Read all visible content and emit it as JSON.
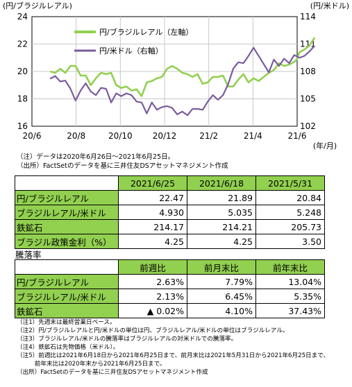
{
  "chart_data": {
    "type": "line",
    "ylabel_left": "(円/ブラジルレアル)",
    "ylabel_right": "(円/米ドル)",
    "xunit": "(年/月)",
    "y_left_ticks": [
      "16",
      "18",
      "20",
      "22",
      "24"
    ],
    "y_right_ticks": [
      "102",
      "105",
      "108",
      "111",
      "114"
    ],
    "ylim_left": [
      16,
      24
    ],
    "ylim_right": [
      102,
      114
    ],
    "x_ticks": [
      "20/6",
      "20/8",
      "20/10",
      "20/12",
      "21/2",
      "21/4",
      "21/6"
    ],
    "grid": true,
    "legend_position": "top-left",
    "series": [
      {
        "name": "円/ブラジルレアル（左軸）",
        "axis": "left",
        "color": "#92d050",
        "points": [
          [
            "2020-06-26",
            20.0
          ],
          [
            "2020-07-03",
            19.9
          ],
          [
            "2020-07-10",
            20.2
          ],
          [
            "2020-07-17",
            19.9
          ],
          [
            "2020-07-24",
            20.4
          ],
          [
            "2020-07-31",
            20.4
          ],
          [
            "2020-08-07",
            19.7
          ],
          [
            "2020-08-14",
            19.7
          ],
          [
            "2020-08-21",
            19.0
          ],
          [
            "2020-08-28",
            19.5
          ],
          [
            "2020-09-04",
            19.9
          ],
          [
            "2020-09-11",
            19.8
          ],
          [
            "2020-09-18",
            19.9
          ],
          [
            "2020-09-25",
            19.0
          ],
          [
            "2020-10-02",
            18.8
          ],
          [
            "2020-10-09",
            18.9
          ],
          [
            "2020-10-16",
            18.6
          ],
          [
            "2020-10-23",
            18.7
          ],
          [
            "2020-10-30",
            18.2
          ],
          [
            "2020-11-06",
            19.2
          ],
          [
            "2020-11-13",
            19.3
          ],
          [
            "2020-11-20",
            19.5
          ],
          [
            "2020-11-27",
            19.6
          ],
          [
            "2020-12-04",
            20.2
          ],
          [
            "2020-12-11",
            20.4
          ],
          [
            "2020-12-18",
            20.2
          ],
          [
            "2020-12-25",
            19.9
          ],
          [
            "2021-01-01",
            19.8
          ],
          [
            "2021-01-08",
            19.6
          ],
          [
            "2021-01-15",
            19.8
          ],
          [
            "2021-01-22",
            19.1
          ],
          [
            "2021-01-29",
            19.2
          ],
          [
            "2021-02-05",
            19.6
          ],
          [
            "2021-02-12",
            19.6
          ],
          [
            "2021-02-19",
            19.7
          ],
          [
            "2021-02-26",
            18.9
          ],
          [
            "2021-03-05",
            18.9
          ],
          [
            "2021-03-12",
            19.4
          ],
          [
            "2021-03-19",
            19.8
          ],
          [
            "2021-03-26",
            19.2
          ],
          [
            "2021-04-02",
            19.5
          ],
          [
            "2021-04-09",
            19.3
          ],
          [
            "2021-04-16",
            19.6
          ],
          [
            "2021-04-23",
            19.9
          ],
          [
            "2021-04-30",
            20.1
          ],
          [
            "2021-05-07",
            20.6
          ],
          [
            "2021-05-14",
            20.4
          ],
          [
            "2021-05-21",
            20.5
          ],
          [
            "2021-05-28",
            20.7
          ],
          [
            "2021-05-31",
            20.84
          ],
          [
            "2021-06-04",
            21.4
          ],
          [
            "2021-06-11",
            21.6
          ],
          [
            "2021-06-18",
            21.89
          ],
          [
            "2021-06-25",
            22.47
          ]
        ]
      },
      {
        "name": "円/米ドル（右軸）",
        "axis": "right",
        "color": "#7a5c9e",
        "points": [
          [
            "2020-06-26",
            107.2
          ],
          [
            "2020-07-03",
            107.5
          ],
          [
            "2020-07-10",
            106.9
          ],
          [
            "2020-07-17",
            107.0
          ],
          [
            "2020-07-24",
            106.1
          ],
          [
            "2020-07-31",
            104.8
          ],
          [
            "2020-08-07",
            105.9
          ],
          [
            "2020-08-14",
            106.7
          ],
          [
            "2020-08-21",
            105.8
          ],
          [
            "2020-08-28",
            105.4
          ],
          [
            "2020-09-04",
            106.2
          ],
          [
            "2020-09-11",
            106.1
          ],
          [
            "2020-09-18",
            104.6
          ],
          [
            "2020-09-25",
            105.6
          ],
          [
            "2020-10-02",
            105.3
          ],
          [
            "2020-10-09",
            105.6
          ],
          [
            "2020-10-16",
            105.4
          ],
          [
            "2020-10-23",
            104.7
          ],
          [
            "2020-10-30",
            104.6
          ],
          [
            "2020-11-06",
            103.4
          ],
          [
            "2020-11-13",
            104.6
          ],
          [
            "2020-11-20",
            103.8
          ],
          [
            "2020-11-27",
            104.1
          ],
          [
            "2020-12-04",
            104.2
          ],
          [
            "2020-12-11",
            104.0
          ],
          [
            "2020-12-18",
            103.3
          ],
          [
            "2020-12-25",
            103.6
          ],
          [
            "2021-01-01",
            103.2
          ],
          [
            "2021-01-08",
            103.9
          ],
          [
            "2021-01-15",
            103.9
          ],
          [
            "2021-01-22",
            103.8
          ],
          [
            "2021-01-29",
            104.7
          ],
          [
            "2021-02-05",
            105.4
          ],
          [
            "2021-02-12",
            104.9
          ],
          [
            "2021-02-19",
            105.4
          ],
          [
            "2021-02-26",
            106.6
          ],
          [
            "2021-03-05",
            108.3
          ],
          [
            "2021-03-12",
            109.0
          ],
          [
            "2021-03-19",
            108.9
          ],
          [
            "2021-03-26",
            109.7
          ],
          [
            "2021-04-02",
            110.6
          ],
          [
            "2021-04-09",
            109.7
          ],
          [
            "2021-04-16",
            108.8
          ],
          [
            "2021-04-23",
            107.9
          ],
          [
            "2021-04-30",
            109.3
          ],
          [
            "2021-05-07",
            108.6
          ],
          [
            "2021-05-14",
            109.4
          ],
          [
            "2021-05-21",
            108.9
          ],
          [
            "2021-05-28",
            109.8
          ],
          [
            "2021-06-04",
            109.5
          ],
          [
            "2021-06-11",
            109.7
          ],
          [
            "2021-06-18",
            110.2
          ],
          [
            "2021-06-25",
            110.8
          ]
        ]
      }
    ]
  },
  "chart_notes": [
    "（注）データは2020年6月26日～2021年6月25日。",
    "（出所）FactSetのデータを基に三井住友DSアセットマネジメント作成"
  ],
  "table1": {
    "headers": [
      "2021/6/25",
      "2021/6/18",
      "2021/5/31"
    ],
    "rows": [
      {
        "label": "円/ブラジルレアル",
        "values": [
          "22.47",
          "21.89",
          "20.84"
        ]
      },
      {
        "label": "ブラジルレアル/米ドル",
        "values": [
          "4.930",
          "5.035",
          "5.248"
        ]
      },
      {
        "label": "鉄鉱石",
        "values": [
          "214.17",
          "214.21",
          "205.73"
        ]
      },
      {
        "label": "ブラジル政策金利（%）",
        "values": [
          "4.25",
          "4.25",
          "3.50"
        ]
      }
    ]
  },
  "table2": {
    "title": "騰落率",
    "headers": [
      "前週比",
      "前月末比",
      "前年末比"
    ],
    "rows": [
      {
        "label": "円/ブラジルレアル",
        "values": [
          "2.63%",
          "7.79%",
          "13.04%"
        ]
      },
      {
        "label": "ブラジルレアル/米ドル",
        "values": [
          "2.13%",
          "6.45%",
          "5.35%"
        ]
      },
      {
        "label": "鉄鉱石",
        "values": [
          "▲ 0.02%",
          "4.10%",
          "37.43%"
        ]
      }
    ]
  },
  "footnotes": [
    "（注1）先週末は最終営業日ベース。",
    "（注2）円/ブラジルレアルと円/米ドルの単位は円、ブラジルレアル/米ドルの単位はブラジルレアル。",
    "（注3）ブラジルレアル/米ドルの騰落率はブラジルレアルの対米ドルでの騰落率。",
    "（注4）鉄鉱石は先物価格（米ドル）。",
    "（注5）前週比は2021年6月18日から2021年6月25日まで、前月末比は2021年5月31日から2021年6月25日まで、",
    "　　　前年末比は2020年末から2021年6月25日まで。",
    "（出所）FactSetのデータを基に三井住友DSアセットマネジメント作成"
  ]
}
